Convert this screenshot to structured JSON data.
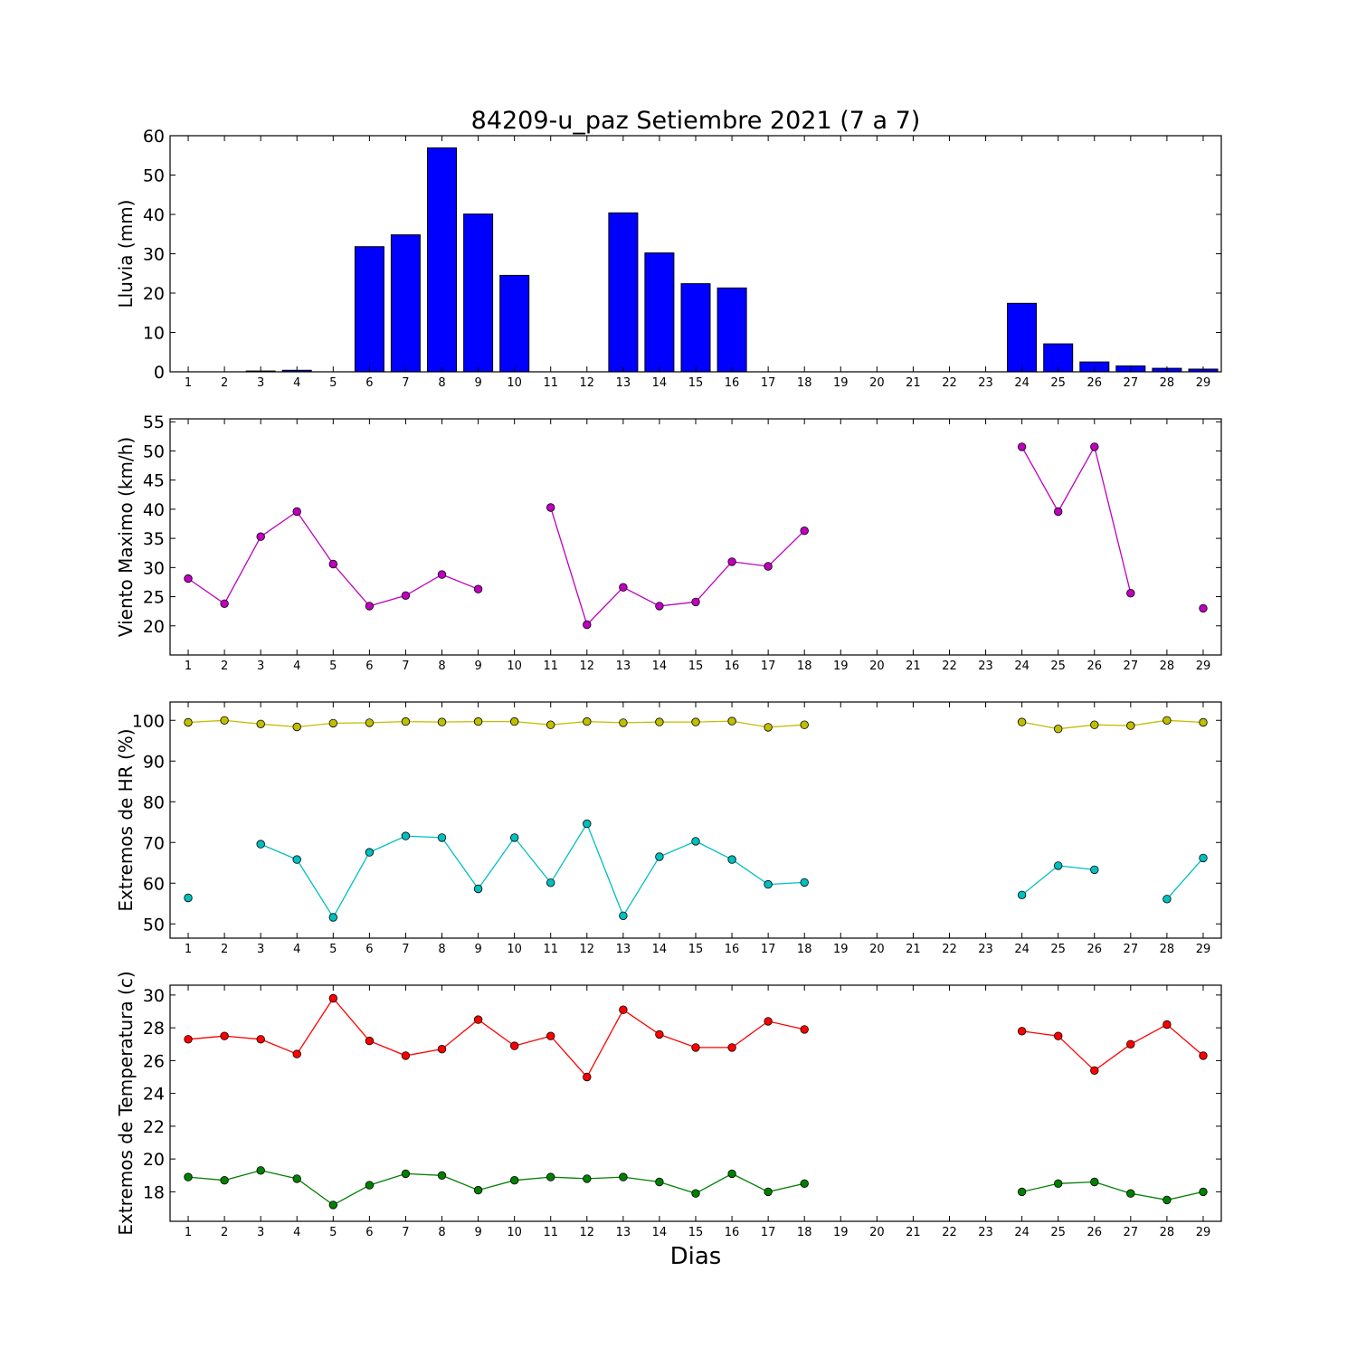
{
  "figure": {
    "title": "84209-u_paz Setiembre 2021  (7 a 7)",
    "xlabel": "Dias"
  },
  "chart_data": [
    {
      "type": "bar",
      "ylabel": "Lluvia (mm)",
      "ylim": [
        0,
        60
      ],
      "yticks": [
        0,
        10,
        20,
        30,
        40,
        50,
        60
      ],
      "categories": [
        1,
        2,
        3,
        4,
        5,
        6,
        7,
        8,
        9,
        10,
        11,
        12,
        13,
        14,
        15,
        16,
        17,
        18,
        19,
        20,
        21,
        22,
        23,
        24,
        25,
        26,
        27,
        28,
        29
      ],
      "series": [
        {
          "color": "#0000ff",
          "values": [
            0,
            0,
            0.2,
            0.4,
            0,
            31.8,
            34.8,
            56.9,
            40.1,
            24.5,
            0,
            0,
            40.4,
            30.2,
            22.4,
            21.3,
            0,
            0,
            0,
            0,
            0,
            0,
            0,
            17.4,
            7.1,
            2.5,
            1.5,
            0.9,
            0.7
          ]
        }
      ]
    },
    {
      "type": "line",
      "ylabel": "Viento Maximo (km/h)",
      "ylim": [
        15,
        55.5
      ],
      "yticks": [
        20,
        25,
        30,
        35,
        40,
        45,
        50,
        55
      ],
      "x": [
        1,
        2,
        3,
        4,
        5,
        6,
        7,
        8,
        9,
        10,
        11,
        12,
        13,
        14,
        15,
        16,
        17,
        18,
        19,
        20,
        21,
        22,
        23,
        24,
        25,
        26,
        27,
        28,
        29
      ],
      "series": [
        {
          "color": "#bf00bf",
          "values": [
            28.1,
            23.8,
            35.3,
            39.6,
            30.6,
            23.4,
            25.2,
            28.8,
            26.3,
            null,
            40.3,
            20.2,
            26.6,
            23.4,
            24.1,
            31.0,
            30.2,
            36.3,
            null,
            null,
            null,
            null,
            null,
            50.7,
            39.6,
            50.7,
            25.6,
            null,
            23.0
          ]
        }
      ]
    },
    {
      "type": "line",
      "ylabel": "Extremos de HR (%)",
      "ylim": [
        46.5,
        104.5
      ],
      "yticks": [
        50,
        60,
        70,
        80,
        90,
        100
      ],
      "x": [
        1,
        2,
        3,
        4,
        5,
        6,
        7,
        8,
        9,
        10,
        11,
        12,
        13,
        14,
        15,
        16,
        17,
        18,
        19,
        20,
        21,
        22,
        23,
        24,
        25,
        26,
        27,
        28,
        29
      ],
      "series": [
        {
          "color": "#bfbf00",
          "values": [
            99.5,
            100,
            99.1,
            98.4,
            99.3,
            99.4,
            99.7,
            99.6,
            99.7,
            99.7,
            98.9,
            99.7,
            99.4,
            99.6,
            99.6,
            99.8,
            98.3,
            98.9,
            null,
            null,
            null,
            null,
            null,
            99.6,
            97.9,
            98.9,
            98.7,
            100,
            99.5
          ]
        },
        {
          "color": "#00bfbf",
          "values": [
            56.4,
            null,
            69.6,
            65.8,
            51.6,
            67.6,
            71.6,
            71.2,
            58.6,
            71.2,
            60.1,
            74.6,
            52.0,
            66.5,
            70.3,
            65.8,
            59.7,
            60.2,
            null,
            null,
            null,
            null,
            null,
            57.1,
            64.3,
            63.3,
            null,
            56.1,
            66.2
          ]
        }
      ]
    },
    {
      "type": "line",
      "ylabel": "Extremos de Temperatura (c)",
      "ylim": [
        16.2,
        30.6
      ],
      "yticks": [
        18,
        20,
        22,
        24,
        26,
        28,
        30
      ],
      "x": [
        1,
        2,
        3,
        4,
        5,
        6,
        7,
        8,
        9,
        10,
        11,
        12,
        13,
        14,
        15,
        16,
        17,
        18,
        19,
        20,
        21,
        22,
        23,
        24,
        25,
        26,
        27,
        28,
        29
      ],
      "series": [
        {
          "color": "#ff0000",
          "values": [
            27.3,
            27.5,
            27.3,
            26.4,
            29.8,
            27.2,
            26.3,
            26.7,
            28.5,
            26.9,
            27.5,
            25.0,
            29.1,
            27.6,
            26.8,
            26.8,
            28.4,
            27.9,
            null,
            null,
            null,
            null,
            null,
            27.8,
            27.5,
            25.4,
            27.0,
            28.2,
            26.3
          ]
        },
        {
          "color": "#008000",
          "values": [
            18.9,
            18.7,
            19.3,
            18.8,
            17.2,
            18.4,
            19.1,
            19.0,
            18.1,
            18.7,
            18.9,
            18.8,
            18.9,
            18.6,
            17.9,
            19.1,
            18.0,
            18.5,
            null,
            null,
            null,
            null,
            null,
            18.0,
            18.5,
            18.6,
            17.9,
            17.5,
            18.0
          ]
        }
      ]
    }
  ]
}
